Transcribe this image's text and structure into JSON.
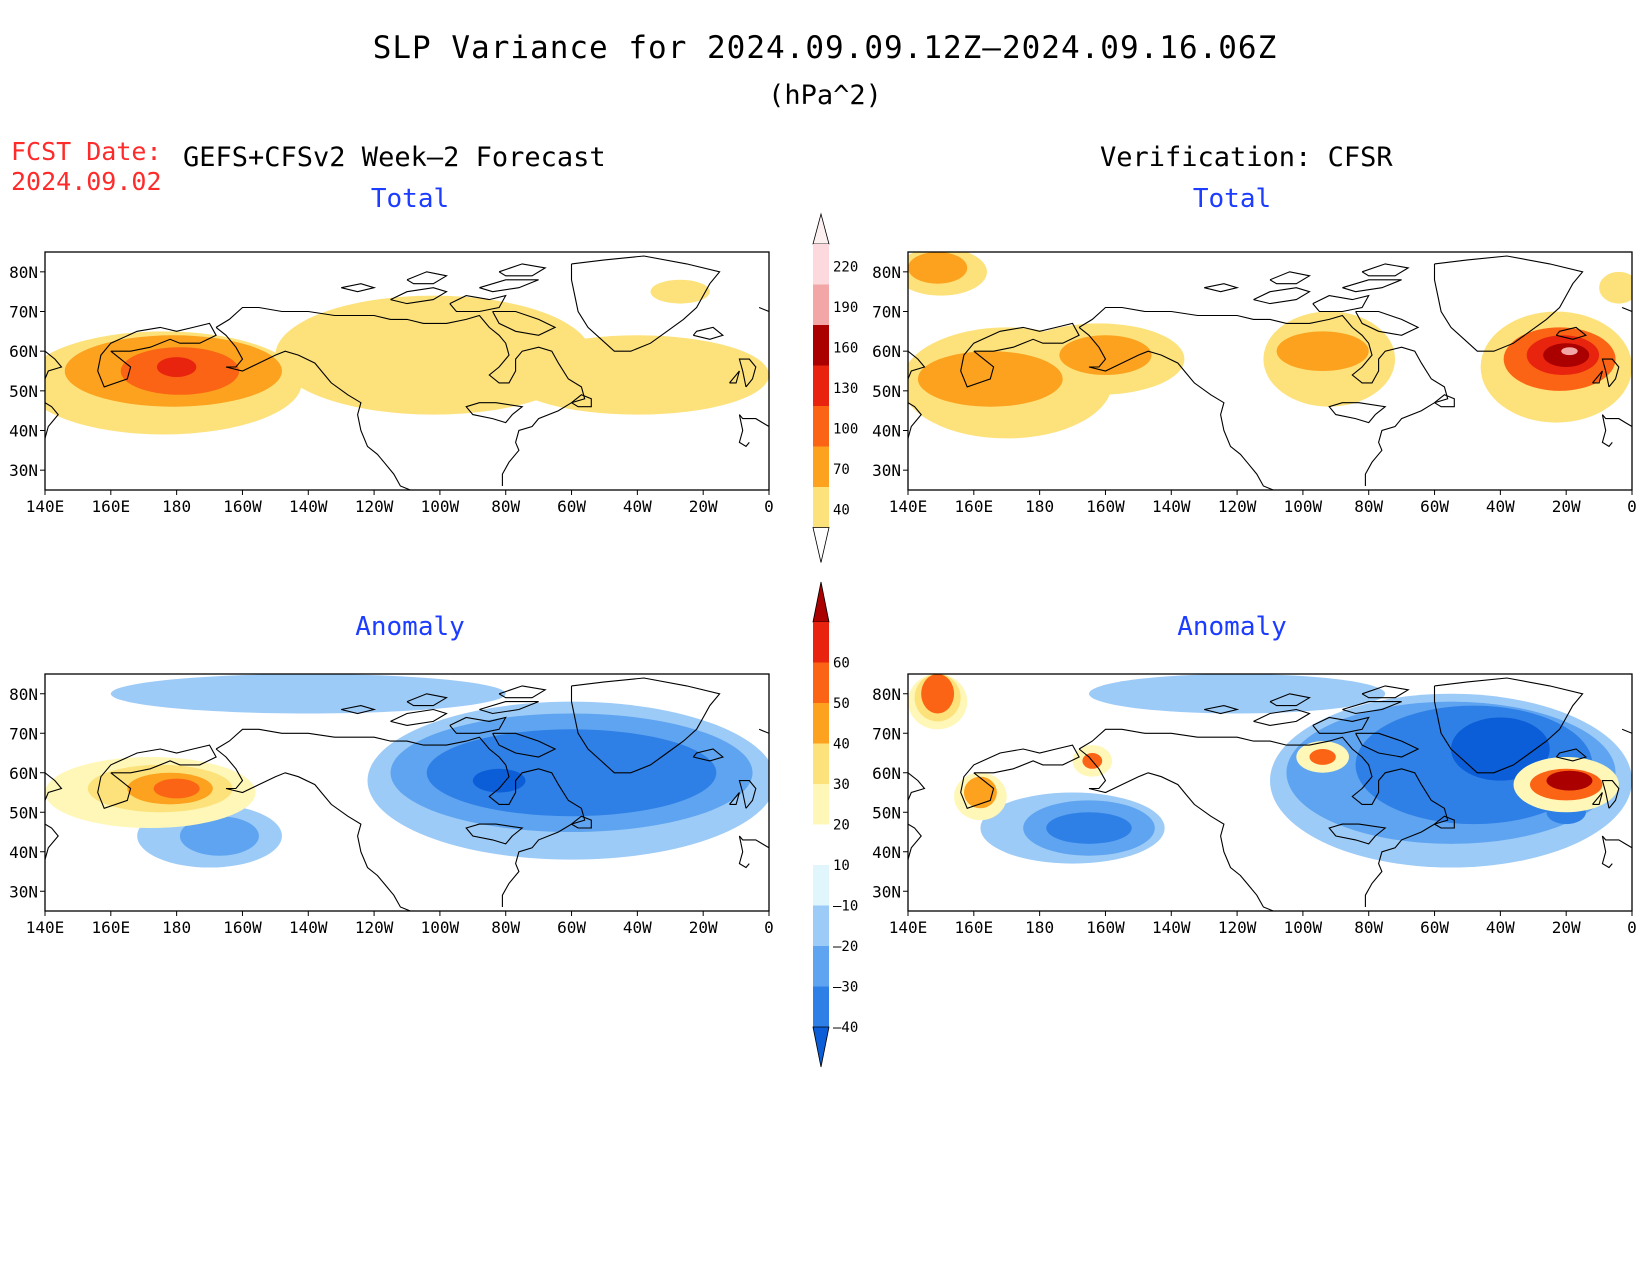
{
  "figure": {
    "title": "SLP Variance for 2024.09.09.12Z–2024.09.16.06Z",
    "units": "(hPa^2)",
    "fcst_label": "FCST Date:",
    "fcst_date": "2024.09.02",
    "left_header": "GEFS+CFSv2 Week–2 Forecast",
    "right_header": "Verification: CFSR"
  },
  "axes": {
    "lat_ticks": [
      "80N",
      "70N",
      "60N",
      "50N",
      "40N",
      "30N"
    ],
    "lon_ticks": [
      "140E",
      "160E",
      "180",
      "160W",
      "140W",
      "120W",
      "100W",
      "80W",
      "60W",
      "40W",
      "20W",
      "0"
    ]
  },
  "chart_data": [
    {
      "type": "heatmap",
      "title": "Total",
      "panel": "forecast",
      "lon_range": [
        140,
        360
      ],
      "lat_range": [
        25,
        85
      ],
      "levels": [
        40,
        70,
        100,
        130,
        160,
        190,
        220
      ],
      "colors": [
        "#fde27b",
        "#fca21e",
        "#fb6414",
        "#e8230e",
        "#aa0000",
        "#f3a6a6",
        "#fbd9dd"
      ],
      "regions": [
        {
          "level": 40,
          "lon": 176,
          "lat": 52,
          "rlon": 42,
          "rlat": 13
        },
        {
          "level": 40,
          "lon": 258,
          "lat": 59,
          "rlon": 48,
          "rlat": 15
        },
        {
          "level": 40,
          "lon": 320,
          "lat": 54,
          "rlon": 40,
          "rlat": 10
        },
        {
          "level": 40,
          "lon": 333,
          "lat": 75,
          "rlon": 9,
          "rlat": 3
        },
        {
          "level": 70,
          "lon": 179,
          "lat": 55,
          "rlon": 33,
          "rlat": 9
        },
        {
          "level": 100,
          "lon": 181,
          "lat": 55,
          "rlon": 18,
          "rlat": 6
        },
        {
          "level": 130,
          "lon": 180,
          "lat": 56,
          "rlon": 6,
          "rlat": 2.5
        }
      ]
    },
    {
      "type": "heatmap",
      "title": "Total",
      "panel": "verification",
      "lon_range": [
        140,
        360
      ],
      "lat_range": [
        25,
        85
      ],
      "levels": [
        40,
        70,
        100,
        130,
        160,
        190,
        220
      ],
      "colors": [
        "#fde27b",
        "#fca21e",
        "#fb6414",
        "#e8230e",
        "#aa0000",
        "#f3a6a6",
        "#fbd9dd"
      ],
      "regions": [
        {
          "level": 40,
          "lon": 170,
          "lat": 52,
          "rlon": 32,
          "rlat": 14
        },
        {
          "level": 40,
          "lon": 198,
          "lat": 58,
          "rlon": 26,
          "rlat": 9
        },
        {
          "level": 40,
          "lon": 268,
          "lat": 58,
          "rlon": 20,
          "rlat": 12
        },
        {
          "level": 40,
          "lon": 150,
          "lat": 80,
          "rlon": 14,
          "rlat": 6
        },
        {
          "level": 40,
          "lon": 337,
          "lat": 56,
          "rlon": 23,
          "rlat": 14
        },
        {
          "level": 40,
          "lon": 356,
          "lat": 76,
          "rlon": 6,
          "rlat": 4
        },
        {
          "level": 70,
          "lon": 165,
          "lat": 53,
          "rlon": 22,
          "rlat": 7
        },
        {
          "level": 70,
          "lon": 200,
          "lat": 59,
          "rlon": 14,
          "rlat": 5
        },
        {
          "level": 70,
          "lon": 266,
          "lat": 60,
          "rlon": 14,
          "rlat": 5
        },
        {
          "level": 70,
          "lon": 149,
          "lat": 81,
          "rlon": 9,
          "rlat": 4
        },
        {
          "level": 100,
          "lon": 338,
          "lat": 58,
          "rlon": 17,
          "rlat": 8
        },
        {
          "level": 130,
          "lon": 339,
          "lat": 59,
          "rlon": 11,
          "rlat": 5
        },
        {
          "level": 160,
          "lon": 340,
          "lat": 59,
          "rlon": 7,
          "rlat": 3
        },
        {
          "level": 190,
          "lon": 341,
          "lat": 60,
          "rlon": 2.5,
          "rlat": 1
        }
      ]
    },
    {
      "type": "heatmap",
      "title": "Anomaly",
      "panel": "forecast",
      "lon_range": [
        140,
        360
      ],
      "lat_range": [
        25,
        85
      ],
      "levels": [
        -40,
        -30,
        -20,
        -10,
        10,
        20,
        30,
        40,
        50,
        60
      ],
      "colors": [
        "#0b5ed7",
        "#2f80e6",
        "#5fa4f0",
        "#9dcbf7",
        "#e1f5fd",
        "#ffffff",
        "#fff7b8",
        "#fde27b",
        "#fca21e",
        "#fb6414",
        "#e8230e",
        "#aa0000"
      ],
      "regions": [
        {
          "level": -10,
          "lon": 300,
          "lat": 58,
          "rlon": 62,
          "rlat": 20
        },
        {
          "level": -10,
          "lon": 190,
          "lat": 44,
          "rlon": 22,
          "rlat": 8
        },
        {
          "level": -10,
          "lon": 220,
          "lat": 80,
          "rlon": 60,
          "rlat": 5
        },
        {
          "level": -20,
          "lon": 300,
          "lat": 60,
          "rlon": 55,
          "rlat": 15
        },
        {
          "level": -20,
          "lon": 193,
          "lat": 44,
          "rlon": 12,
          "rlat": 5
        },
        {
          "level": -30,
          "lon": 300,
          "lat": 60,
          "rlon": 44,
          "rlat": 11
        },
        {
          "level": -40,
          "lon": 278,
          "lat": 58,
          "rlon": 8,
          "rlat": 3
        },
        {
          "level": 10,
          "lon": 172,
          "lat": 55,
          "rlon": 32,
          "rlat": 9
        },
        {
          "level": 20,
          "lon": 175,
          "lat": 56,
          "rlon": 22,
          "rlat": 6
        },
        {
          "level": 30,
          "lon": 178,
          "lat": 56,
          "rlon": 13,
          "rlat": 4
        },
        {
          "level": 40,
          "lon": 180,
          "lat": 56,
          "rlon": 7,
          "rlat": 2.5
        }
      ]
    },
    {
      "type": "heatmap",
      "title": "Anomaly",
      "panel": "verification",
      "lon_range": [
        140,
        360
      ],
      "lat_range": [
        25,
        85
      ],
      "levels": [
        -40,
        -30,
        -20,
        -10,
        10,
        20,
        30,
        40,
        50,
        60
      ],
      "colors": [
        "#0b5ed7",
        "#2f80e6",
        "#5fa4f0",
        "#9dcbf7",
        "#e1f5fd",
        "#ffffff",
        "#fff7b8",
        "#fde27b",
        "#fca21e",
        "#fb6414",
        "#e8230e",
        "#aa0000"
      ],
      "regions": [
        {
          "level": -10,
          "lon": 305,
          "lat": 58,
          "rlon": 55,
          "rlat": 22
        },
        {
          "level": -10,
          "lon": 190,
          "lat": 46,
          "rlon": 28,
          "rlat": 9
        },
        {
          "level": -10,
          "lon": 240,
          "lat": 80,
          "rlon": 45,
          "rlat": 5
        },
        {
          "level": -20,
          "lon": 305,
          "lat": 60,
          "rlon": 50,
          "rlat": 18
        },
        {
          "level": -20,
          "lon": 195,
          "lat": 46,
          "rlon": 20,
          "rlat": 7
        },
        {
          "level": -30,
          "lon": 312,
          "lat": 62,
          "rlon": 36,
          "rlat": 15
        },
        {
          "level": -30,
          "lon": 195,
          "lat": 46,
          "rlon": 13,
          "rlat": 4
        },
        {
          "level": -40,
          "lon": 320,
          "lat": 66,
          "rlon": 15,
          "rlat": 8
        },
        {
          "level": -30,
          "lon": 340,
          "lat": 50,
          "rlon": 6,
          "rlat": 3
        },
        {
          "level": 10,
          "lon": 149,
          "lat": 78,
          "rlon": 9,
          "rlat": 7
        },
        {
          "level": 20,
          "lon": 149,
          "lat": 79,
          "rlon": 7,
          "rlat": 6
        },
        {
          "level": 40,
          "lon": 149,
          "lat": 80,
          "rlon": 5,
          "rlat": 5
        },
        {
          "level": 10,
          "lon": 162,
          "lat": 54,
          "rlon": 8,
          "rlat": 6
        },
        {
          "level": 30,
          "lon": 162,
          "lat": 55,
          "rlon": 5,
          "rlat": 4
        },
        {
          "level": 10,
          "lon": 196,
          "lat": 63,
          "rlon": 6,
          "rlat": 4
        },
        {
          "level": 40,
          "lon": 196,
          "lat": 63,
          "rlon": 3,
          "rlat": 2
        },
        {
          "level": 10,
          "lon": 266,
          "lat": 64,
          "rlon": 8,
          "rlat": 4
        },
        {
          "level": 40,
          "lon": 266,
          "lat": 64,
          "rlon": 4,
          "rlat": 2
        },
        {
          "level": 10,
          "lon": 340,
          "lat": 57,
          "rlon": 16,
          "rlat": 7
        },
        {
          "level": 40,
          "lon": 340,
          "lat": 57,
          "rlon": 11,
          "rlat": 4
        },
        {
          "level": 60,
          "lon": 341,
          "lat": 58,
          "rlon": 7,
          "rlat": 2.5
        }
      ]
    }
  ],
  "colorbars": [
    {
      "labels": [
        "220",
        "190",
        "160",
        "130",
        "100",
        "70",
        "40"
      ]
    },
    {
      "labels": [
        "60",
        "50",
        "40",
        "30",
        "20",
        "10",
        "–10",
        "–20",
        "–30",
        "–40"
      ]
    }
  ]
}
